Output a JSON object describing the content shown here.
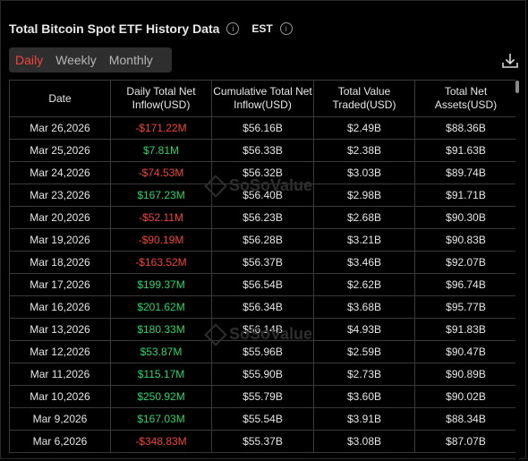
{
  "header": {
    "title": "Total Bitcoin Spot ETF History Data",
    "timezone": "EST",
    "info_icon": "info-icon",
    "download_icon": "download-icon"
  },
  "tabs": [
    {
      "label": "Daily",
      "active": true
    },
    {
      "label": "Weekly",
      "active": false
    },
    {
      "label": "Monthly",
      "active": false
    }
  ],
  "watermark": "SoSoValue",
  "colors": {
    "negative": "#f0443a",
    "positive": "#2bd46b",
    "active_tab": "#f0443a"
  },
  "table": {
    "columns": [
      "Date",
      "Daily Total Net Inflow(USD)",
      "Cumulative Total Net Inflow(USD)",
      "Total Value Traded(USD)",
      "Total Net Assets(USD)"
    ],
    "rows": [
      {
        "date": "Mar 26,2026",
        "inflow": "-$171.22M",
        "sign": "neg",
        "cumulative": "$56.16B",
        "traded": "$2.49B",
        "assets": "$88.36B"
      },
      {
        "date": "Mar 25,2026",
        "inflow": "$7.81M",
        "sign": "pos",
        "cumulative": "$56.33B",
        "traded": "$2.38B",
        "assets": "$91.63B"
      },
      {
        "date": "Mar 24,2026",
        "inflow": "-$74.53M",
        "sign": "neg",
        "cumulative": "$56.32B",
        "traded": "$3.03B",
        "assets": "$89.74B"
      },
      {
        "date": "Mar 23,2026",
        "inflow": "$167.23M",
        "sign": "pos",
        "cumulative": "$56.40B",
        "traded": "$2.98B",
        "assets": "$91.71B"
      },
      {
        "date": "Mar 20,2026",
        "inflow": "-$52.11M",
        "sign": "neg",
        "cumulative": "$56.23B",
        "traded": "$2.68B",
        "assets": "$90.30B"
      },
      {
        "date": "Mar 19,2026",
        "inflow": "-$90.19M",
        "sign": "neg",
        "cumulative": "$56.28B",
        "traded": "$3.21B",
        "assets": "$90.83B"
      },
      {
        "date": "Mar 18,2026",
        "inflow": "-$163.52M",
        "sign": "neg",
        "cumulative": "$56.37B",
        "traded": "$3.46B",
        "assets": "$92.07B"
      },
      {
        "date": "Mar 17,2026",
        "inflow": "$199.37M",
        "sign": "pos",
        "cumulative": "$56.54B",
        "traded": "$2.62B",
        "assets": "$96.74B"
      },
      {
        "date": "Mar 16,2026",
        "inflow": "$201.62M",
        "sign": "pos",
        "cumulative": "$56.34B",
        "traded": "$3.68B",
        "assets": "$95.77B"
      },
      {
        "date": "Mar 13,2026",
        "inflow": "$180.33M",
        "sign": "pos",
        "cumulative": "$56.14B",
        "traded": "$4.93B",
        "assets": "$91.83B"
      },
      {
        "date": "Mar 12,2026",
        "inflow": "$53.87M",
        "sign": "pos",
        "cumulative": "$55.96B",
        "traded": "$2.59B",
        "assets": "$90.47B"
      },
      {
        "date": "Mar 11,2026",
        "inflow": "$115.17M",
        "sign": "pos",
        "cumulative": "$55.90B",
        "traded": "$2.73B",
        "assets": "$90.89B"
      },
      {
        "date": "Mar 10,2026",
        "inflow": "$250.92M",
        "sign": "pos",
        "cumulative": "$55.79B",
        "traded": "$3.60B",
        "assets": "$90.02B"
      },
      {
        "date": "Mar 9,2026",
        "inflow": "$167.03M",
        "sign": "pos",
        "cumulative": "$55.54B",
        "traded": "$3.91B",
        "assets": "$88.34B"
      },
      {
        "date": "Mar 6,2026",
        "inflow": "-$348.83M",
        "sign": "neg",
        "cumulative": "$55.37B",
        "traded": "$3.08B",
        "assets": "$87.07B"
      }
    ]
  }
}
